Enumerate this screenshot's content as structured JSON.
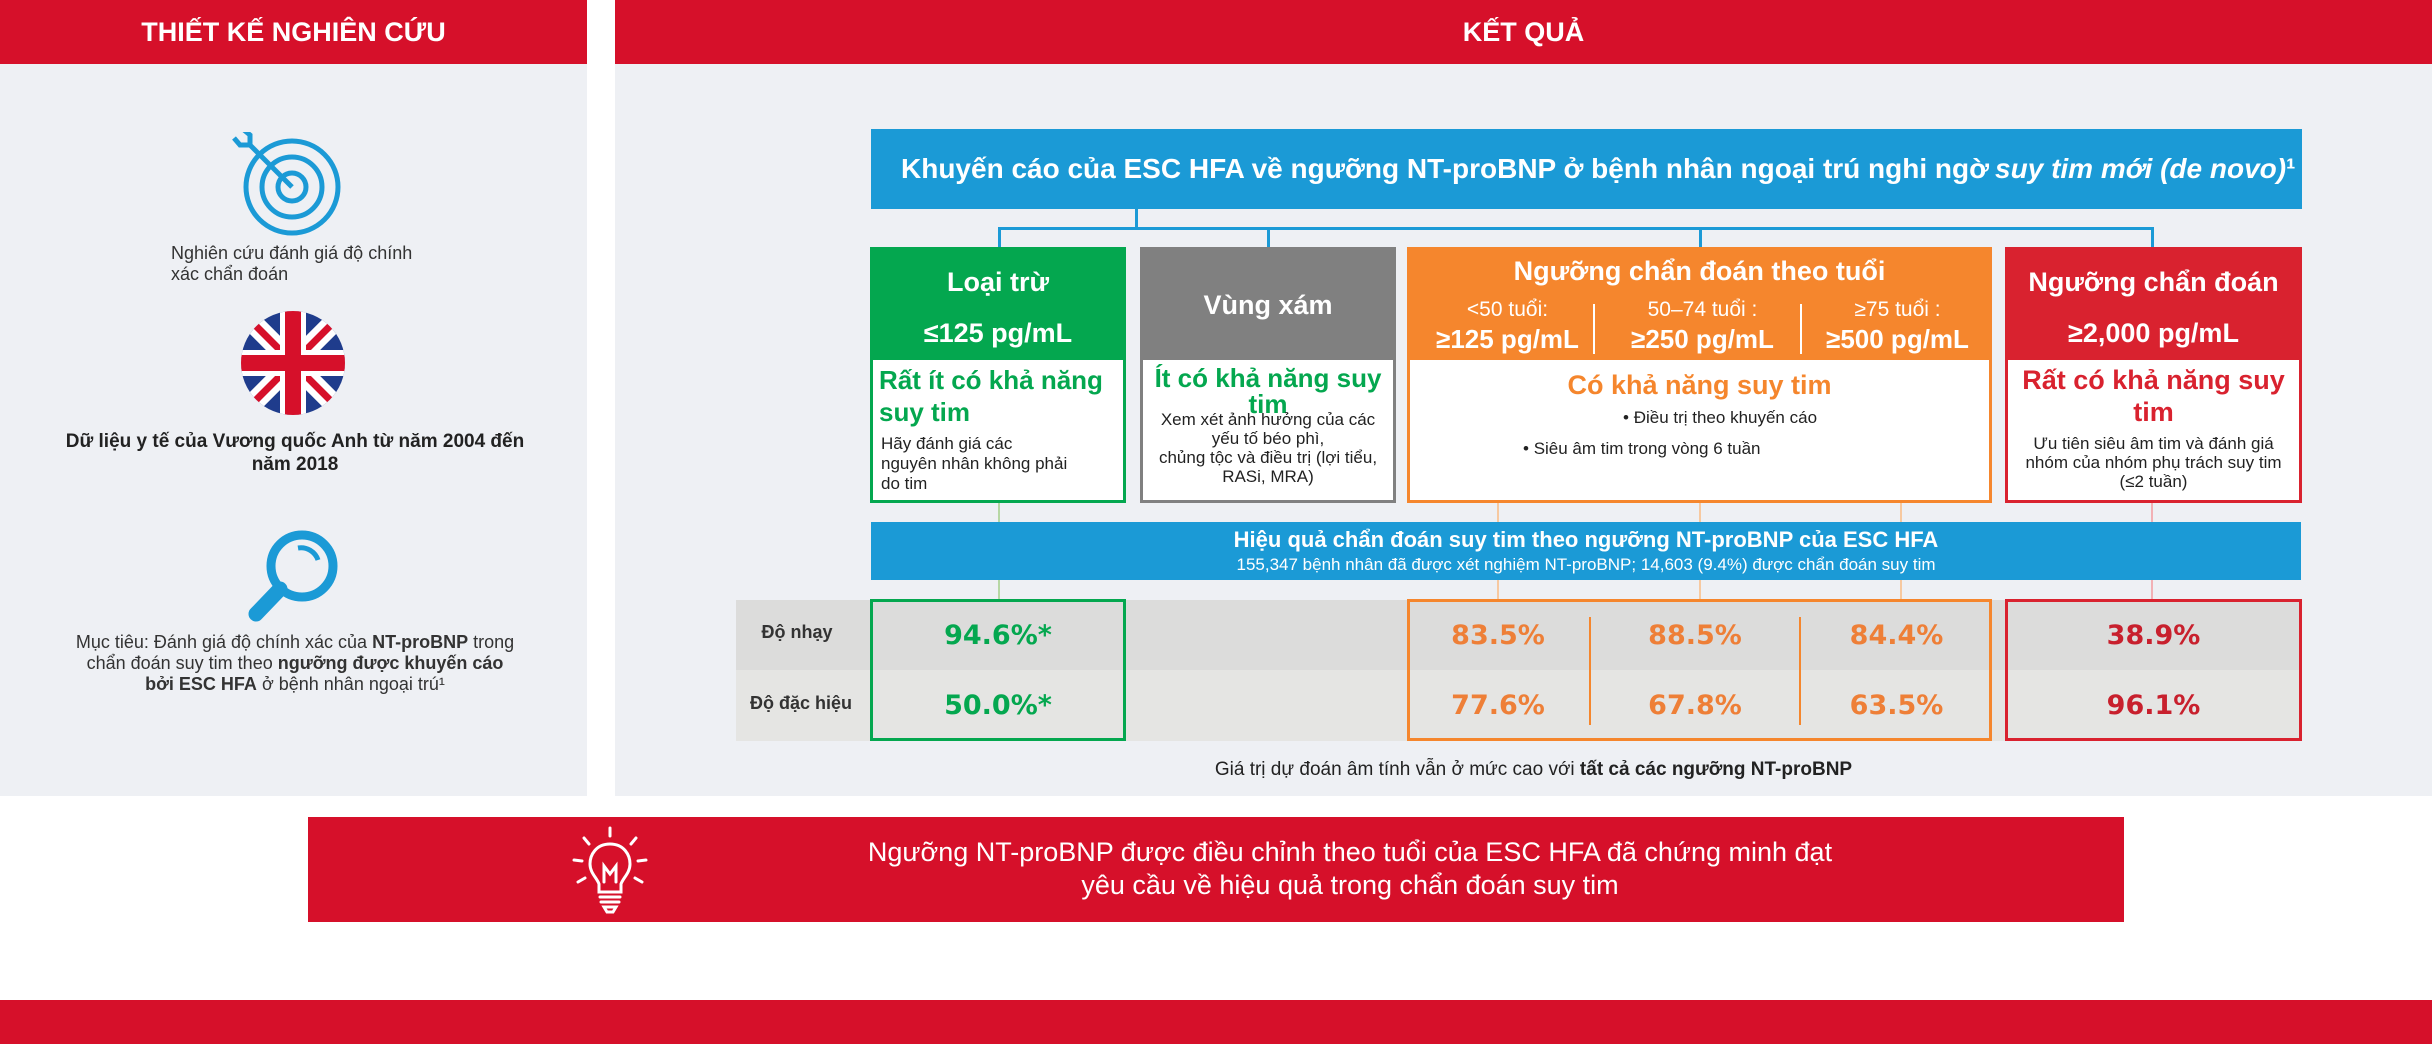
{
  "left": {
    "header": "THIẾT KẾ NGHIÊN CỨU",
    "item1": {
      "icon": "target-icon",
      "line1": "Nghiên cứu đánh giá độ chính",
      "line2": "xác chẩn đoán"
    },
    "item2": {
      "icon": "uk-flag-icon",
      "line1": "Dữ liệu y tế của Vương quốc Anh từ năm 2004 đến",
      "line2": "năm 2018"
    },
    "item3": {
      "icon": "magnifier-icon",
      "line1_a": "Mục tiêu: Đánh giá độ chính xác của ",
      "line1_b": "NT-proBNP",
      "line1_c": " trong",
      "line2_a": "chẩn đoán suy tim theo ",
      "line2_b": "ngưỡng được khuyến cáo",
      "line3_a": "bởi ESC HFA",
      "line3_b": " ở bệnh nhân ngoại trú¹"
    }
  },
  "right": {
    "header": "KẾT QUẢ",
    "banner_a": "Khuyến cáo của ESC HFA về ngưỡng NT-proBNP ở bệnh nhân ngoại trú nghi ngờ ",
    "banner_b": "suy tim mới (de novo)",
    "banner_c": "¹",
    "rule_out": {
      "title": "Loại trừ",
      "value": "≤125 pg/mL",
      "sub_l1": "Rất ít có khả năng",
      "sub_l2": "suy tim",
      "desc_l1": "Hãy đánh giá các",
      "desc_l2": "nguyên nhân không phải",
      "desc_l3": "do tim"
    },
    "grey_zone": {
      "title": "Vùng xám",
      "sub_l1": "Ít có khả năng suy",
      "sub_l2": "tim",
      "desc_l1": "Xem xét ảnh hưởng của các",
      "desc_l2": "yếu tố béo phì,",
      "desc_l3": "chủng tộc và điều trị (lợi tiểu,",
      "desc_l4": "RASi, MRA)"
    },
    "age": {
      "title": "Ngưỡng chẩn đoán theo tuổi",
      "g1_label": "<50 tuổi:",
      "g1_value": "≥125 pg/mL",
      "g2_label": "50–74 tuổi :",
      "g2_value": "≥250 pg/mL",
      "g3_label": "≥75 tuổi :",
      "g3_value": "≥500 pg/mL",
      "sub": "Có khả năng suy tim",
      "b1": "Điều trị theo khuyến cáo",
      "b2": "Siêu âm tim trong vòng 6 tuần"
    },
    "rule_in": {
      "title": "Ngưỡng chẩn đoán",
      "value": "≥2,000 pg/mL",
      "sub_l1": "Rất có khả năng suy",
      "sub_l2": "tim",
      "desc_l1": "Ưu tiên siêu âm tim và đánh giá",
      "desc_l2": "nhóm của nhóm phụ trách suy tim",
      "desc_l3": "(≤2 tuần)"
    },
    "perf_title": "Hiệu quả chẩn đoán suy tim theo ngưỡng NT-proBNP của ESC HFA",
    "perf_sub": "155,347 bệnh nhân đã được xét nghiệm NT-proBNP; 14,603 (9.4%) được chẩn đoán suy tim",
    "row1_label": "Độ nhạy",
    "row2_label": "Độ đặc hiệu",
    "sens": {
      "rule_out": "94.6%*",
      "age1": "83.5%",
      "age2": "88.5%",
      "age3": "84.4%",
      "rule_in": "38.9%"
    },
    "spec": {
      "rule_out": "50.0%*",
      "age1": "77.6%",
      "age2": "67.8%",
      "age3": "63.5%",
      "rule_in": "96.1%"
    },
    "footnote_a": "Giá trị dự đoán âm tính vẫn ở mức cao với ",
    "footnote_b": "tất cả các ngưỡng NT-proBNP"
  },
  "conclusion": {
    "icon": "lightbulb-icon",
    "line1": "Ngưỡng NT-proBNP được điều chỉnh theo tuổi của ESC HFA đã chứng minh đạt",
    "line2": "yêu cầu về hiệu quả trong chẩn đoán suy tim"
  },
  "colors": {
    "red": "#d6102a",
    "blue": "#1b9ad6",
    "green": "#04a74f",
    "grey": "#808080",
    "orange": "#f5862d",
    "rule_in_red": "#d9222f"
  }
}
